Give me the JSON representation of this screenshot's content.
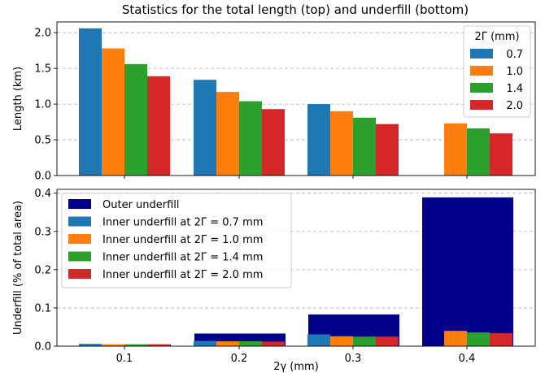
{
  "chart_data": [
    {
      "type": "bar",
      "title": "Statistics for the total length (top) and underfill (bottom)",
      "xlabel": "",
      "ylabel": "Length (km)",
      "ylim": [
        0,
        2.15
      ],
      "yticks": [
        "0.0",
        "0.5",
        "1.0",
        "1.5",
        "2.0"
      ],
      "ytick_values": [
        0,
        0.5,
        1.0,
        1.5,
        2.0
      ],
      "grid": true,
      "legend": {
        "title": "2Γ (mm)",
        "placement": "top-right"
      },
      "categories": [
        "0.1",
        "0.2",
        "0.3",
        "0.4"
      ],
      "series": [
        {
          "name": "0.7",
          "color": "#1f77b4",
          "values": [
            2.06,
            1.34,
            1.0,
            null
          ]
        },
        {
          "name": "1.0",
          "color": "#ff7f0e",
          "values": [
            1.78,
            1.17,
            0.9,
            0.73
          ]
        },
        {
          "name": "1.4",
          "color": "#2ca02c",
          "values": [
            1.56,
            1.04,
            0.81,
            0.66
          ]
        },
        {
          "name": "2.0",
          "color": "#d62728",
          "values": [
            1.39,
            0.93,
            0.72,
            0.59
          ]
        }
      ]
    },
    {
      "type": "bar",
      "title": "",
      "xlabel": "2γ (mm)",
      "ylabel": "Underfill (% of total area)",
      "ylim": [
        0,
        0.41
      ],
      "yticks": [
        "0.0",
        "0.1",
        "0.2",
        "0.3",
        "0.4"
      ],
      "ytick_values": [
        0,
        0.1,
        0.2,
        0.3,
        0.4
      ],
      "xticks": [
        "0.1",
        "0.2",
        "0.3",
        "0.4"
      ],
      "grid": true,
      "legend": {
        "placement": "top-left"
      },
      "categories": [
        "0.1",
        "0.2",
        "0.3",
        "0.4"
      ],
      "outer": {
        "name": "Outer underfill",
        "color": "#00008b",
        "values": [
          0.004,
          0.033,
          0.083,
          0.389
        ]
      },
      "series": [
        {
          "name": "Inner underfill at 2Γ = 0.7 mm",
          "color": "#1f77b4",
          "values": [
            0.006,
            0.014,
            0.031,
            null
          ]
        },
        {
          "name": "Inner underfill at 2Γ = 1.0 mm",
          "color": "#ff7f0e",
          "values": [
            0.005,
            0.013,
            0.026,
            0.04
          ]
        },
        {
          "name": "Inner underfill at 2Γ = 1.4 mm",
          "color": "#2ca02c",
          "values": [
            0.005,
            0.013,
            0.025,
            0.036
          ]
        },
        {
          "name": "Inner underfill at 2Γ = 2.0 mm",
          "color": "#d62728",
          "values": [
            0.005,
            0.012,
            0.025,
            0.034
          ]
        }
      ]
    }
  ]
}
